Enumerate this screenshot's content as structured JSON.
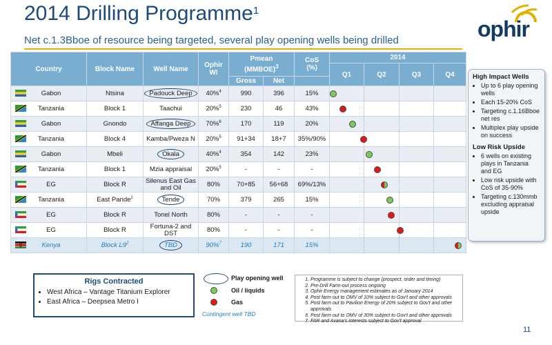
{
  "header": {
    "title": "2014 Drilling Programme",
    "title_sup": "1",
    "subtitle": "Net c.1.3Bboe of resource being targeted, several play opening wells being drilled",
    "logo_text": "ophir"
  },
  "table": {
    "headers": {
      "country": "Country",
      "block": "Block Name",
      "well": "Well Name",
      "wi_line1": "Ophir",
      "wi_line2": "WI",
      "pmean_line1": "Pmean",
      "pmean_line2": "(MMBOE)",
      "pmean_sup": "3",
      "gross": "Gross",
      "net": "Net",
      "cos_line1": "CoS",
      "cos_line2": "(%)",
      "year": "2014",
      "q1": "Q1",
      "q2": "Q2",
      "q3": "Q3",
      "q4": "Q4"
    },
    "rows": [
      {
        "flag": "gabon",
        "country": "Gabon",
        "block": "Ntsina",
        "well": "Padouck Deep",
        "circled": true,
        "wi": "40%",
        "wi_sup": "4",
        "gross": "990",
        "net": "396",
        "cos": "15%",
        "marker": "oil",
        "timing": 0.03
      },
      {
        "flag": "tanzania",
        "country": "Tanzania",
        "block": "Block 1",
        "well": "Taachui",
        "circled": false,
        "wi": "20%",
        "wi_sup": "5",
        "gross": "230",
        "net": "46",
        "cos": "43%",
        "marker": "gas",
        "timing": 0.1
      },
      {
        "flag": "gabon",
        "country": "Gabon",
        "block": "Gnondo",
        "well": "Affanga Deep",
        "circled": true,
        "wi": "70%",
        "wi_sup": "6",
        "gross": "170",
        "net": "119",
        "cos": "20%",
        "marker": "oil",
        "timing": 0.17
      },
      {
        "flag": "tanzania",
        "country": "Tanzania",
        "block": "Block 4",
        "well": "Kamba/Pweza N",
        "circled": false,
        "wi": "20%",
        "wi_sup": "5",
        "gross": "91+34",
        "net": "18+7",
        "cos": "35%/90%",
        "marker": "gas",
        "timing": 0.25
      },
      {
        "flag": "gabon",
        "country": "Gabon",
        "block": "Mbeli",
        "well": "Okala",
        "circled": true,
        "wi": "40%",
        "wi_sup": "4",
        "gross": "354",
        "net": "142",
        "cos": "23%",
        "marker": "oil",
        "timing": 0.29
      },
      {
        "flag": "tanzania",
        "country": "Tanzania",
        "block": "Block 1",
        "well": "Mzia appraisal",
        "circled": false,
        "wi": "20%",
        "wi_sup": "5",
        "gross": "-",
        "net": "-",
        "cos": "-",
        "marker": "gas",
        "timing": 0.35
      },
      {
        "flag": "eg",
        "country": "EG",
        "block": "Block R",
        "well": "Silenus East Gas and Oil",
        "circled": false,
        "wi": "80%",
        "wi_sup": "",
        "gross": "70+85",
        "net": "56+68",
        "cos": "69%/13%",
        "marker": "both",
        "timing": 0.4
      },
      {
        "flag": "tanzania",
        "country": "Tanzania",
        "block": "East Pande",
        "block_sup": "2",
        "well": "Tende",
        "circled": true,
        "wi": "70%",
        "wi_sup": "",
        "gross": "379",
        "net": "265",
        "cos": "15%",
        "marker": "oil",
        "timing": 0.44
      },
      {
        "flag": "eg",
        "country": "EG",
        "block": "Block R",
        "well": "Tonel North",
        "circled": false,
        "wi": "80%",
        "wi_sup": "",
        "gross": "-",
        "net": "-",
        "cos": "-",
        "marker": "gas",
        "timing": 0.45
      },
      {
        "flag": "eg",
        "country": "EG",
        "block": "Block R",
        "well": "Fortuna-2 and DST",
        "circled": false,
        "wi": "80%",
        "wi_sup": "",
        "gross": "-",
        "net": "-",
        "cos": "-",
        "marker": "gas",
        "timing": 0.52
      },
      {
        "flag": "kenya",
        "country": "Kenya",
        "block": "Block L9",
        "block_sup": "2",
        "well": "TBD",
        "circled": true,
        "wi": "90%",
        "wi_sup": "7",
        "gross": "190",
        "net": "171",
        "cos": "15%",
        "marker": "both",
        "timing": 0.94
      }
    ]
  },
  "sidebox": {
    "section1_title": "High Impact Wells",
    "section1_items": [
      "Up to 6 play opening wells",
      "Each 15-20% CoS",
      "Targeting c.1.16Bboe net res",
      "Multiplex play upside on success"
    ],
    "section2_title": "Low Risk Upside",
    "section2_items": [
      "6 wells on existing plays in Tanzania and EG",
      "Low risk upside with CoS of 35-90%",
      "Targeting c.130mmb excluding appraisal upside"
    ]
  },
  "rigs": {
    "title": "Rigs Contracted",
    "items": [
      "West Africa – Vantage Titanium Explorer",
      "East Africa – Deepsea Metro I"
    ]
  },
  "legend": {
    "play_opening": "Play opening well",
    "oil": "Oil / liquids",
    "gas": "Gas",
    "contingent": "Contingent well TBD"
  },
  "notes": [
    "Programme is subject to change (prospect, order and timing)",
    "Pre-Drill Farm-out process ongoing",
    "Ophir Energy management estimates as of January 2014",
    "Post farm out to OMV of 10% subject to Gov't and other approvals",
    "Post farm out to Pavilion Energy of 20% subject to Gov't and other approvals",
    "Post farm out to OMV of 30% subject to Gov't and other approvals",
    "FAR and Avana's interests subject to Gov't approval"
  ],
  "page_number": "11",
  "colors": {
    "header_blue": "#7aaed1",
    "title_blue": "#1d4a7a",
    "accent_gold": "#e2b100",
    "oil_green": "#7ccb5a",
    "gas_red": "#e01818"
  }
}
